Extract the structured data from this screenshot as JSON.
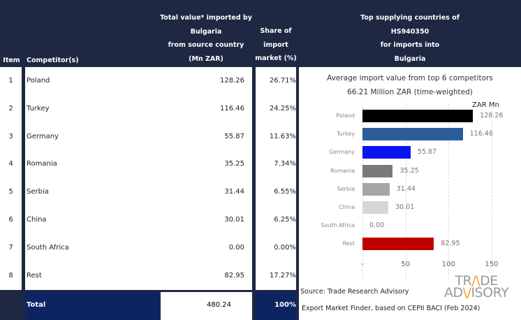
{
  "header": {
    "item": "Item",
    "competitor": "Competitor(s)",
    "value": [
      "Total value* imported by",
      "Bulgaria",
      "from source country",
      "(Mn ZAR)"
    ],
    "share": [
      "Share of",
      "import",
      "market (%)"
    ],
    "chart": [
      "Top supplying countries of",
      "HS940350",
      "for imports into",
      "Bulgaria"
    ]
  },
  "rows": [
    {
      "item": "1",
      "name": "Poland",
      "value": "128.26",
      "share": "26.71%"
    },
    {
      "item": "2",
      "name": "Turkey",
      "value": "116.46",
      "share": "24.25%"
    },
    {
      "item": "3",
      "name": "Germany",
      "value": "55.87",
      "share": "11.63%"
    },
    {
      "item": "4",
      "name": "Romania",
      "value": "35.25",
      "share": "7.34%"
    },
    {
      "item": "5",
      "name": "Serbia",
      "value": "31.44",
      "share": "6.55%"
    },
    {
      "item": "6",
      "name": "China",
      "value": "30.01",
      "share": "6.25%"
    },
    {
      "item": "7",
      "name": "South Africa",
      "value": "0.00",
      "share": "0.00%"
    },
    {
      "item": "8",
      "name": "Rest",
      "value": "82.95",
      "share": "17.27%"
    }
  ],
  "total": {
    "label": "Total",
    "value": "480.24",
    "share": "100%"
  },
  "source": [
    "Source: Trade Research Advisory",
    "Export Market Finder, based on CEPII BACI (Feb 2024)"
  ],
  "logo": "TRADE ADVISORY",
  "chart_data": {
    "type": "bar",
    "orientation": "horizontal",
    "title": "Average import value from top 6 competitors",
    "subtitle": "66.21 Million ZAR (time-weighted)",
    "unit_label": "ZAR Mn",
    "categories": [
      "Poland",
      "Turkey",
      "Germany",
      "Romania",
      "Serbia",
      "China",
      "South Africa",
      "Rest"
    ],
    "values": [
      128.26,
      116.46,
      55.87,
      35.25,
      31.44,
      30.01,
      0.0,
      82.95
    ],
    "value_labels": [
      "128.26",
      "116.46",
      "55.87",
      "35.25",
      "31.44",
      "30.01",
      "0.00",
      "82.95"
    ],
    "colors": [
      "#000000",
      "#2a5d9a",
      "#0a14f0",
      "#7a7a7a",
      "#a6a6a6",
      "#d6d6d6",
      "#ffffff",
      "#c00000"
    ],
    "xlim": [
      0,
      150
    ],
    "ticks": [
      "-",
      "50",
      "100",
      "150"
    ],
    "tick_values": [
      0,
      50,
      100,
      150
    ],
    "grid": true
  }
}
